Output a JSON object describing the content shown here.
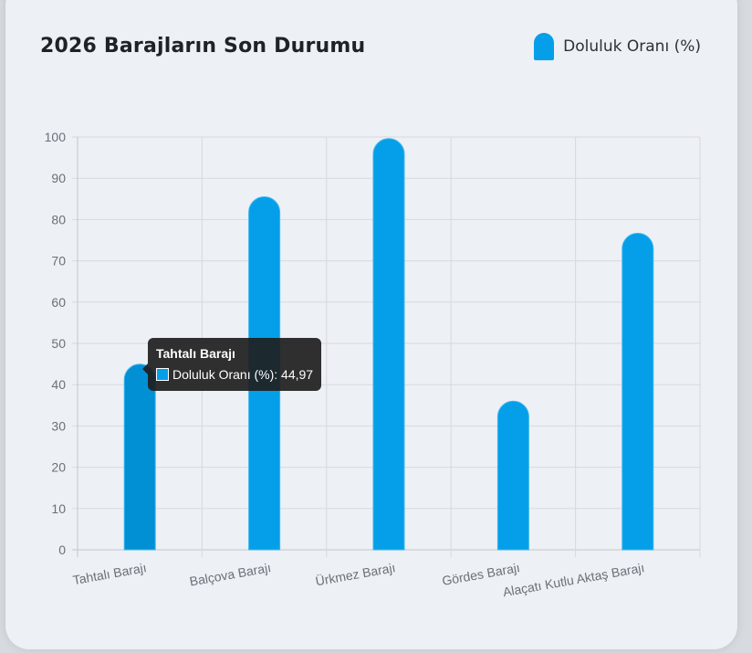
{
  "chart_title": "2026 Barajların Son Durumu",
  "colors": {
    "bar": "#049fe8",
    "bar_hover": "#0290d4",
    "grid": "#d6d9de",
    "axis": "#c3c7cd"
  },
  "tooltip": {
    "title": "Tahtalı Barajı",
    "label": "Doluluk Oranı (%)",
    "value": "44,97",
    "text": "Doluluk Oranı (%): 44,97"
  },
  "chart_data": {
    "type": "bar",
    "title": "2026 Barajların Son Durumu",
    "xlabel": "",
    "ylabel": "",
    "categories": [
      "Tahtalı Barajı",
      "Balçova Barajı",
      "Ürkmez Barajı",
      "Gördes Barajı",
      "Alaçatı Kutlu Aktaş Barajı"
    ],
    "series": [
      {
        "name": "Doluluk Oranı (%)",
        "values": [
          44.97,
          85.5,
          99.6,
          36.0,
          76.7
        ]
      }
    ],
    "ylim": [
      0,
      100
    ],
    "yticks": [
      "0",
      "10",
      "20",
      "30",
      "40",
      "50",
      "60",
      "70",
      "80",
      "90",
      "100"
    ],
    "grid": true,
    "legend_position": "top-right",
    "highlighted_index": 0
  }
}
